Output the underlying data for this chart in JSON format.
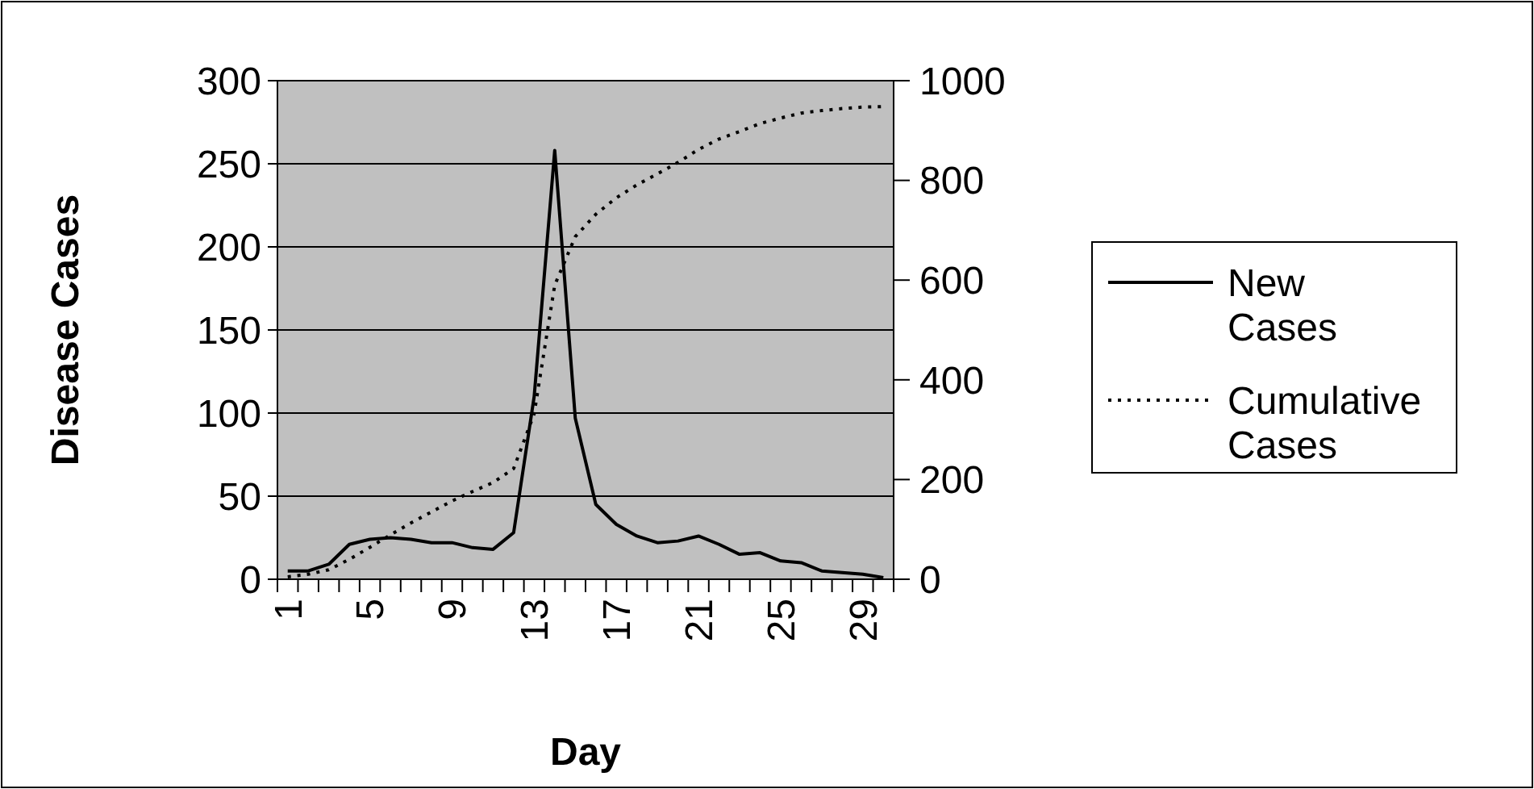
{
  "chart_data": {
    "type": "line",
    "xlabel": "Day",
    "ylabel": "Disease Cases",
    "categories": [
      "1",
      null,
      null,
      null,
      "5",
      null,
      null,
      null,
      "9",
      null,
      null,
      null,
      "13",
      null,
      null,
      null,
      "17",
      null,
      null,
      null,
      "21",
      null,
      null,
      null,
      "25",
      null,
      null,
      null,
      "29",
      null
    ],
    "series": [
      {
        "name": "New Cases",
        "color": "#000000",
        "line_style": "solid",
        "values": [
          5,
          5,
          9,
          21,
          24,
          25,
          24,
          22,
          22,
          19,
          18,
          28,
          110,
          258,
          97,
          45,
          33,
          26,
          22,
          23,
          26,
          21,
          15,
          16,
          11,
          10,
          5,
          4,
          3,
          1
        ]
      },
      {
        "name": "Cumulative Cases",
        "color": "#000000",
        "line_style": "dotted",
        "axis": "y2",
        "values": [
          5,
          10,
          19,
          40,
          64,
          89,
          113,
          135,
          157,
          176,
          194,
          222,
          332,
          590,
          687,
          732,
          765,
          791,
          813,
          836,
          862,
          883,
          898,
          914,
          925,
          935,
          940,
          944,
          947,
          948
        ]
      }
    ],
    "ylim": [
      0,
      300
    ],
    "yticks": [
      0,
      50,
      100,
      150,
      200,
      250,
      300
    ],
    "y2lim": [
      0,
      1000
    ],
    "y2ticks": [
      0,
      200,
      400,
      600,
      800,
      1000
    ],
    "grid": "y",
    "legend": "right",
    "marker": "none"
  }
}
